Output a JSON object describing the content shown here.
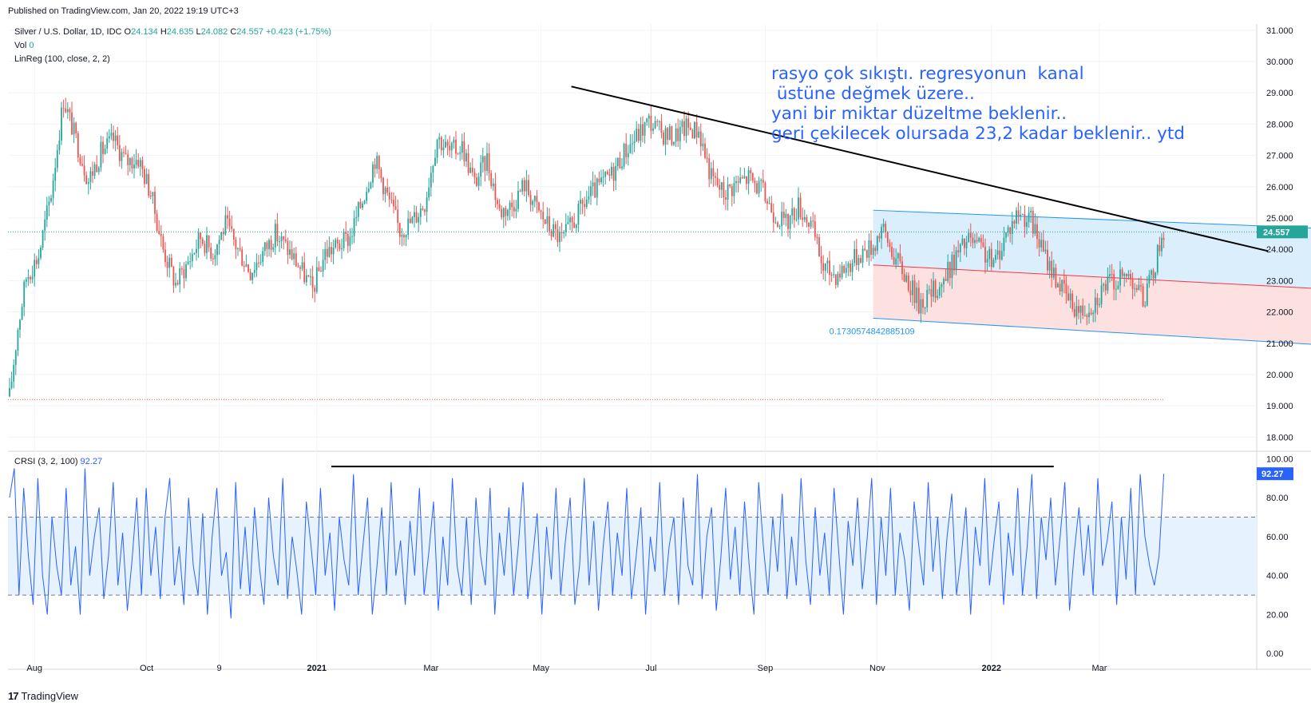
{
  "header": {
    "published": "Published on TradingView.com, Jan 20, 2022 19:19 UTC+3"
  },
  "legend": {
    "symbol": "Silver / U.S. Dollar, 1D, IDC",
    "o_label": "O",
    "o_value": "24.134",
    "h_label": "H",
    "h_value": "24.635",
    "l_label": "L",
    "l_value": "24.082",
    "c_label": "C",
    "c_value": "24.557",
    "change": "+0.423 (+1.75%)",
    "vol_label": "Vol",
    "vol_value": "0",
    "linreg": "LinReg (100, close, 2, 2)",
    "crsi_label": "CRSI (3, 2, 100)",
    "crsi_value": "92.27"
  },
  "annotation": {
    "text": "rasyo çok sıkıştı. regresyonun  kanal\n üstüne değmek üzere..\nyani bir miktar düzeltme beklenir..\ngeri çekilecek olursada 23,2 kadar beklenir.. ytd",
    "channel_value": "0.1730574842885109"
  },
  "footer": {
    "brand": "TradingView"
  },
  "colors": {
    "up": "#26a69a",
    "down": "#ef5350",
    "channel_line": "#2196f3",
    "channel_upper_fill": "#dbeefc",
    "channel_lower_fill": "#fde0e0",
    "midline": "#f23645",
    "trendline": "#000000",
    "crsi_line": "#2962ff",
    "crsi_band": "#e6f2fd",
    "price_label_bg": "#26a69a",
    "crsi_label_bg": "#2962ff",
    "annotation": "#2962ff"
  },
  "chart_data": [
    {
      "type": "candlestick",
      "title": "Silver / U.S. Dollar, 1D, IDC",
      "x_ticks": [
        "Aug",
        "Oct",
        "9",
        "2021",
        "Mar",
        "May",
        "Jul",
        "Sep",
        "Nov",
        "2022",
        "Mar"
      ],
      "y_ticks": [
        "31.000",
        "30.000",
        "29.000",
        "28.000",
        "27.000",
        "26.000",
        "25.000",
        "24.000",
        "23.000",
        "22.000",
        "21.000",
        "20.000",
        "19.000",
        "18.000"
      ],
      "ylim": [
        17.6,
        31.2
      ],
      "last_price": "24.557",
      "close_path": [
        [
          0,
          19.3
        ],
        [
          4,
          21.5
        ],
        [
          8,
          23.1
        ],
        [
          14,
          23.8
        ],
        [
          20,
          25.8
        ],
        [
          26,
          28.8
        ],
        [
          32,
          27.5
        ],
        [
          38,
          26.2
        ],
        [
          44,
          27.1
        ],
        [
          50,
          27.5
        ],
        [
          56,
          26.8
        ],
        [
          62,
          26.9
        ],
        [
          68,
          25.8
        ],
        [
          74,
          24.0
        ],
        [
          80,
          22.9
        ],
        [
          86,
          23.6
        ],
        [
          92,
          24.4
        ],
        [
          98,
          23.9
        ],
        [
          104,
          24.8
        ],
        [
          110,
          24.0
        ],
        [
          116,
          23.3
        ],
        [
          122,
          23.9
        ],
        [
          128,
          24.5
        ],
        [
          134,
          24.0
        ],
        [
          140,
          23.4
        ],
        [
          146,
          22.7
        ],
        [
          152,
          23.9
        ],
        [
          158,
          24.1
        ],
        [
          164,
          24.4
        ],
        [
          170,
          25.6
        ],
        [
          176,
          26.9
        ],
        [
          182,
          25.7
        ],
        [
          188,
          24.6
        ],
        [
          194,
          24.9
        ],
        [
          200,
          25.5
        ],
        [
          206,
          27.6
        ],
        [
          212,
          27.1
        ],
        [
          218,
          27.3
        ],
        [
          224,
          26.1
        ],
        [
          230,
          26.9
        ],
        [
          236,
          25.2
        ],
        [
          242,
          25.4
        ],
        [
          248,
          26.1
        ],
        [
          254,
          25.3
        ],
        [
          260,
          24.7
        ],
        [
          266,
          24.3
        ],
        [
          272,
          24.9
        ],
        [
          278,
          25.6
        ],
        [
          284,
          26.0
        ],
        [
          290,
          26.4
        ],
        [
          296,
          27.1
        ],
        [
          302,
          27.6
        ],
        [
          308,
          28.1
        ],
        [
          314,
          27.7
        ],
        [
          320,
          27.6
        ],
        [
          326,
          27.9
        ],
        [
          332,
          27.8
        ],
        [
          338,
          26.3
        ],
        [
          344,
          25.8
        ],
        [
          350,
          26.1
        ],
        [
          356,
          26.3
        ],
        [
          362,
          25.9
        ],
        [
          368,
          25.2
        ],
        [
          374,
          24.8
        ],
        [
          380,
          25.4
        ],
        [
          386,
          24.8
        ],
        [
          392,
          23.4
        ],
        [
          398,
          23.2
        ],
        [
          404,
          23.5
        ],
        [
          410,
          23.9
        ],
        [
          416,
          24.1
        ],
        [
          420,
          24.7
        ],
        [
          426,
          23.8
        ],
        [
          432,
          23.1
        ],
        [
          438,
          22.3
        ],
        [
          444,
          22.6
        ],
        [
          450,
          23.0
        ],
        [
          456,
          23.8
        ],
        [
          462,
          24.3
        ],
        [
          468,
          24.0
        ],
        [
          474,
          23.5
        ],
        [
          480,
          24.5
        ],
        [
          486,
          25.2
        ],
        [
          492,
          24.9
        ],
        [
          498,
          23.9
        ],
        [
          504,
          23.1
        ],
        [
          510,
          22.4
        ],
        [
          516,
          22.0
        ],
        [
          522,
          22.3
        ],
        [
          528,
          22.9
        ],
        [
          534,
          23.0
        ],
        [
          540,
          23.2
        ],
        [
          546,
          22.4
        ],
        [
          550,
          23.0
        ],
        [
          552,
          23.6
        ],
        [
          556,
          24.6
        ]
      ],
      "slots": 557,
      "annotations": {
        "trendline": {
          "from": [
            286,
            29.1
          ],
          "to": [
            660,
            24.2
          ]
        },
        "regression_channel": {
          "start": 416,
          "end": 657,
          "mid_start": 23.5,
          "mid_end": 22.65,
          "upper_start": 25.25,
          "upper_end": 24.6,
          "lower_start": 21.8,
          "lower_end": 20.85
        },
        "baseline_level": 19.2
      }
    },
    {
      "type": "line",
      "title": "CRSI (3, 2, 100)",
      "y_ticks": [
        "100.00",
        "80.00",
        "60.00",
        "40.00",
        "20.00",
        "0.00"
      ],
      "ylim": [
        -4,
        103
      ],
      "bands": [
        30,
        70
      ],
      "last_value": "92.27",
      "values": [
        80,
        95,
        30,
        85,
        50,
        25,
        90,
        40,
        20,
        70,
        45,
        30,
        85,
        35,
        55,
        20,
        95,
        40,
        60,
        75,
        28,
        50,
        88,
        35,
        62,
        22,
        48,
        80,
        30,
        85,
        40,
        65,
        28,
        70,
        90,
        35,
        55,
        25,
        80,
        45,
        30,
        72,
        20,
        60,
        85,
        40,
        52,
        18,
        88,
        33,
        65,
        30,
        75,
        45,
        25,
        80,
        50,
        35,
        90,
        28,
        60,
        42,
        20,
        78,
        55,
        30,
        85,
        40,
        62,
        22,
        70,
        48,
        35,
        92,
        30,
        55,
        80,
        20,
        45,
        75,
        30,
        88,
        40,
        58,
        25,
        68,
        40,
        85,
        30,
        52,
        78,
        22,
        60,
        35,
        90,
        45,
        30,
        70,
        25,
        80,
        50,
        35,
        85,
        20,
        62,
        40,
        75,
        30,
        55,
        88,
        28,
        48,
        72,
        20,
        65,
        38,
        85,
        30,
        58,
        80,
        25,
        45,
        90,
        35,
        68,
        22,
        55,
        78,
        30,
        62,
        40,
        85,
        28,
        50,
        75,
        20,
        60,
        42,
        88,
        30,
        55,
        70,
        25,
        80,
        45,
        35,
        92,
        28,
        60,
        75,
        22,
        50,
        85,
        38,
        65,
        30,
        78,
        45,
        20,
        88,
        55,
        30,
        70,
        42,
        82,
        28,
        60,
        35,
        90,
        48,
        25,
        75,
        40,
        62,
        30,
        85,
        52,
        20,
        68,
        45,
        80,
        33,
        58,
        90,
        25,
        70,
        40,
        85,
        30,
        62,
        48,
        22,
        78,
        55,
        35,
        88,
        42,
        70,
        28,
        60,
        82,
        30,
        50,
        75,
        20,
        65,
        45,
        90,
        35,
        58,
        78,
        25,
        62,
        40,
        85,
        30,
        55,
        92,
        28,
        70,
        48,
        80,
        35,
        60,
        88,
        22,
        52,
        75,
        40,
        66,
        30,
        90,
        45,
        58,
        78,
        25,
        70,
        38,
        85,
        30,
        92,
        60,
        45,
        35,
        50,
        92.27
      ],
      "first_slot": 0,
      "last_slot": 556
    }
  ]
}
